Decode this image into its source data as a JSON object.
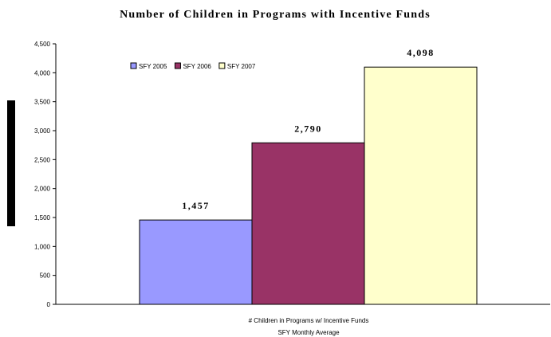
{
  "chart_data": {
    "type": "bar",
    "title": "Number of Children in Programs with Incentive Funds",
    "categories": [
      "# Children in Programs w/ Incentive Funds"
    ],
    "xlabel": "SFY Monthly Average",
    "ylabel": "",
    "ylim": [
      0,
      4500
    ],
    "y_ticks": [
      0,
      500,
      1000,
      1500,
      2000,
      2500,
      3000,
      3500,
      4000,
      4500
    ],
    "y_tick_labels": [
      "0",
      "500",
      "1,000",
      "1,500",
      "2,000",
      "2,500",
      "3,000",
      "3,500",
      "4,000",
      "4,500"
    ],
    "grid": false,
    "legend_position": "top-left",
    "series": [
      {
        "name": "SFY 2005",
        "values": [
          1457
        ],
        "label": "1,457",
        "color": "#9999FF"
      },
      {
        "name": "SFY 2006",
        "values": [
          2790
        ],
        "label": "2,790",
        "color": "#993366"
      },
      {
        "name": "SFY 2007",
        "values": [
          4098
        ],
        "label": "4,098",
        "color": "#FFFFCC"
      }
    ]
  }
}
